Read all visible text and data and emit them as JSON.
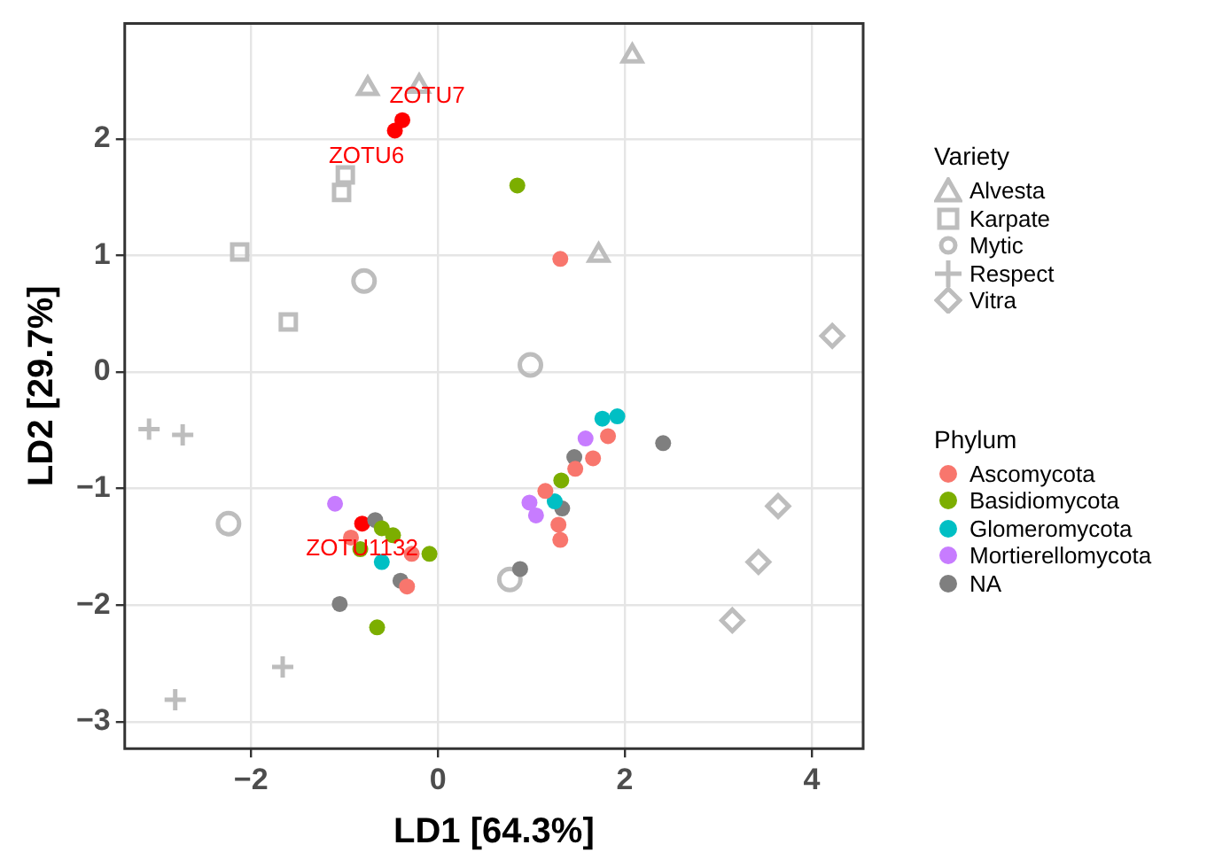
{
  "chart_data": {
    "type": "scatter",
    "xlabel": "LD1 [64.3%]",
    "ylabel": "LD2 [29.7%]",
    "legend_title": [
      "Variety",
      "Phylum"
    ],
    "legend": "right",
    "grid": true,
    "xlim": [
      -3.35,
      4.55
    ],
    "ylim": [
      -3.23,
      2.99
    ],
    "xticks": [
      -2,
      0,
      2,
      4
    ],
    "yticks": [
      -3,
      -2,
      -1,
      0,
      1,
      2
    ],
    "series": [
      {
        "name": "Alvesta",
        "color": "#bdbdbd",
        "marker": "triangle",
        "x": [
          -0.75,
          -0.2,
          2.08,
          1.72
        ],
        "values": [
          2.43,
          2.45,
          2.71,
          1.0
        ]
      },
      {
        "name": "Karpate",
        "color": "#bdbdbd",
        "marker": "square",
        "x": [
          -0.99,
          -1.03,
          -2.12,
          -1.6
        ],
        "values": [
          1.69,
          1.54,
          1.03,
          0.43
        ]
      },
      {
        "name": "Mytic",
        "color": "#bdbdbd",
        "marker": "circle",
        "x": [
          -0.79,
          0.99,
          -2.24,
          0.77
        ],
        "values": [
          0.78,
          0.06,
          -1.3,
          -1.78
        ]
      },
      {
        "name": "Respect",
        "color": "#bdbdbd",
        "marker": "cross",
        "x": [
          -3.09,
          -2.73,
          -1.66,
          -2.81
        ],
        "values": [
          -0.49,
          -0.54,
          -2.53,
          -2.81
        ]
      },
      {
        "name": "Vitra",
        "color": "#bdbdbd",
        "marker": "diamond",
        "x": [
          4.22,
          3.64,
          3.43,
          3.15
        ],
        "values": [
          0.31,
          -1.15,
          -1.63,
          -2.13
        ]
      },
      {
        "name": "Ascomycota",
        "color": "#f8766d",
        "marker": "circle",
        "x": [
          1.31,
          1.82,
          1.66,
          1.47,
          1.15,
          1.29,
          1.31,
          -0.93,
          -0.28,
          -0.33
        ],
        "values": [
          0.97,
          -0.55,
          -0.74,
          -0.83,
          -1.02,
          -1.31,
          -1.44,
          -1.42,
          -1.56,
          -1.84
        ]
      },
      {
        "name": "Basidiomycota",
        "color": "#7cae00",
        "marker": "circle",
        "x": [
          0.85,
          1.32,
          -0.6,
          -0.48,
          -0.83,
          -0.09,
          -0.65
        ],
        "values": [
          1.6,
          -0.93,
          -1.34,
          -1.4,
          -1.52,
          -1.56,
          -2.19
        ]
      },
      {
        "name": "Glomeromycota",
        "color": "#00bfc4",
        "marker": "circle",
        "x": [
          1.76,
          1.92,
          1.25,
          -0.6
        ],
        "values": [
          -0.4,
          -0.38,
          -1.11,
          -1.63
        ]
      },
      {
        "name": "Mortierellomycota",
        "color": "#c77cff",
        "marker": "circle",
        "x": [
          1.58,
          0.98,
          1.05,
          -1.1
        ],
        "values": [
          -0.57,
          -1.12,
          -1.23,
          -1.13
        ]
      },
      {
        "name": "NA",
        "color": "#7f7f7f",
        "marker": "circle",
        "x": [
          2.41,
          1.46,
          1.33,
          0.88,
          -0.67,
          -0.4,
          -1.05
        ],
        "values": [
          -0.61,
          -0.73,
          -1.17,
          -1.69,
          -1.27,
          -1.79,
          -1.99
        ]
      },
      {
        "color": "#ff0000",
        "marker": "circle",
        "x": [
          -0.38,
          -0.46,
          -0.81
        ],
        "values": [
          2.16,
          2.07,
          -1.3
        ]
      }
    ],
    "annotations": [
      {
        "text": "ZOTU7",
        "x": -0.38,
        "y": 2.16
      },
      {
        "text": "ZOTU6",
        "x": -0.46,
        "y": 2.07
      },
      {
        "text": "ZOTU1132",
        "x": -0.81,
        "y": -1.3
      }
    ]
  }
}
